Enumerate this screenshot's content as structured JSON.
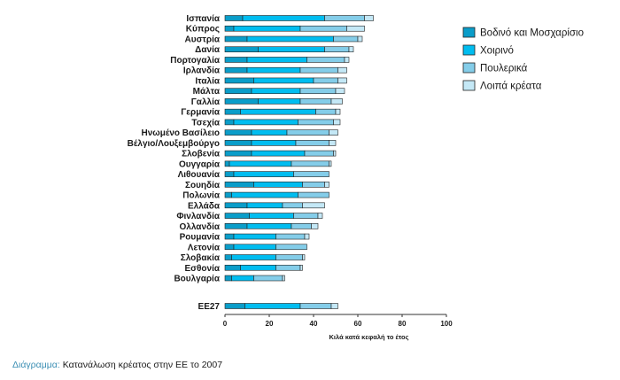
{
  "caption": {
    "prefix": "Διάγραμμα:",
    "text": "Κατανάλωση κρέατος στην ΕΕ το 2007"
  },
  "colors": {
    "beef": "#0a9dc9",
    "pork": "#00bdf0",
    "poultry": "#84cde9",
    "other": "#c4e8f6",
    "outline": "#222222"
  },
  "chart_data": {
    "type": "bar",
    "orientation": "horizontal",
    "stacked": true,
    "title": "",
    "xlabel": "Κιλά κατά κεφαλή το έτος",
    "ylabel": "",
    "xlim": [
      0,
      100
    ],
    "xticks": [
      0,
      20,
      40,
      60,
      80,
      100
    ],
    "grid": false,
    "legend_position": "top-right",
    "categories": [
      "Ισπανία",
      "Κύπρος",
      "Αυστρία",
      "Δανία",
      "Πορτογαλία",
      "Ιρλανδία",
      "Ιταλία",
      "Μάλτα",
      "Γαλλία",
      "Γερμανία",
      "Τσεχία",
      "Ηνωμένο Βασίλειο",
      "Βέλγιο/Λουξεμβούργο",
      "Σλοβενία",
      "Ουγγαρία",
      "Λιθουανία",
      "Σουηδία",
      "Πολωνία",
      "Ελλάδα",
      "Φινλανδία",
      "Ολλανδία",
      "Ρουμανία",
      "Λετονία",
      "Σλοβακία",
      "Εσθονία",
      "Βουλγαρία",
      "ΕΕ27"
    ],
    "series": [
      {
        "name": "Βοδινό και Μοσχαρίσιο",
        "key": "beef",
        "values": [
          8,
          4,
          10,
          15,
          10,
          10,
          13,
          12,
          15,
          7,
          4,
          12,
          12,
          12,
          2,
          4,
          13,
          3,
          10,
          11,
          10,
          4,
          4,
          3,
          7,
          3,
          9
        ]
      },
      {
        "name": "Χοιρινό",
        "key": "pork",
        "values": [
          37,
          30,
          39,
          30,
          27,
          24,
          27,
          22,
          19,
          34,
          29,
          16,
          20,
          24,
          28,
          27,
          22,
          30,
          16,
          20,
          20,
          19,
          19,
          20,
          16,
          10,
          25
        ]
      },
      {
        "name": "Πουλερικά",
        "key": "poultry",
        "values": [
          18,
          21,
          11,
          11,
          17,
          17,
          11,
          16,
          14,
          9,
          16,
          19,
          15,
          13,
          17,
          16,
          10,
          14,
          9,
          11,
          9,
          13,
          14,
          12,
          11,
          13,
          14
        ]
      },
      {
        "name": "Λοιπά κρέατα",
        "key": "other",
        "values": [
          4,
          8,
          2,
          2,
          2,
          4,
          4,
          4,
          5,
          2,
          3,
          4,
          3,
          1,
          1,
          0,
          2,
          0,
          10,
          2,
          3,
          2,
          0,
          1,
          1,
          1,
          3
        ]
      }
    ]
  }
}
